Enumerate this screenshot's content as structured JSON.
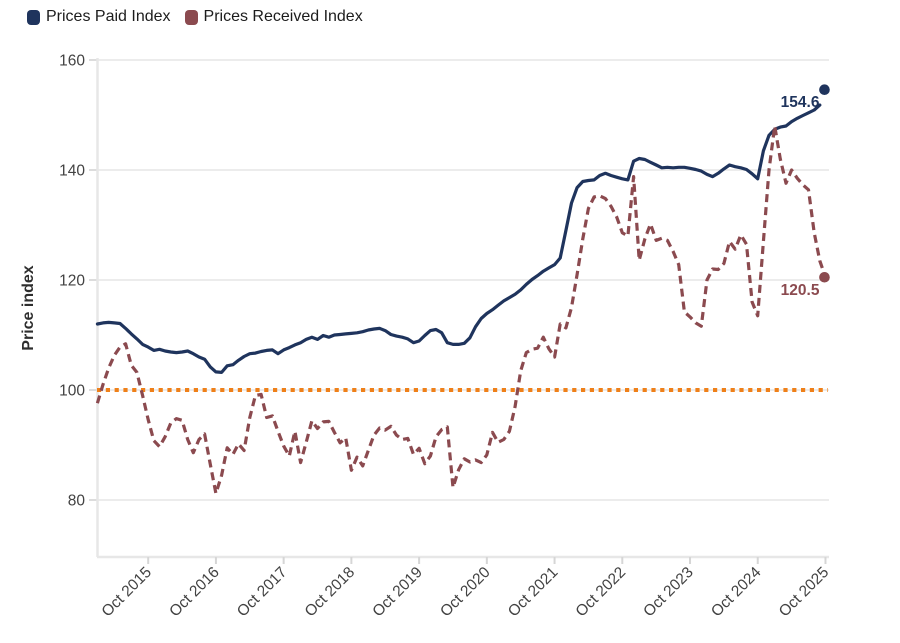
{
  "chart_data": {
    "type": "line",
    "title": "",
    "ylabel": "Price index",
    "yticks": [
      80,
      100,
      120,
      140,
      160
    ],
    "ylim": [
      70,
      162
    ],
    "grid": "horizontal-light",
    "legend_position": "top-left",
    "x_frequency": "monthly",
    "x_start": "Jan 2015",
    "x_end": "Oct 2025",
    "x_ticks": [
      "Oct 2015",
      "Oct 2016",
      "Oct 2017",
      "Oct 2018",
      "Oct 2019",
      "Oct 2020",
      "Oct 2021",
      "Oct 2022",
      "Oct 2023",
      "Oct 2024",
      "Oct 2025"
    ],
    "x_tick_month_indices": [
      9,
      21,
      33,
      45,
      57,
      69,
      81,
      93,
      105,
      117,
      129
    ],
    "baseline": {
      "value": 100,
      "color": "#ef8019",
      "style": "dotted"
    },
    "series": [
      {
        "name": "Prices Paid Index",
        "color": "#1f345d",
        "line_style": "solid",
        "end_value": 154.6,
        "end_label": "154.6",
        "line_gap_before_dot": true,
        "values": [
          112.0,
          112.2,
          112.3,
          112.2,
          112.1,
          111.2,
          110.2,
          109.3,
          108.3,
          107.8,
          107.2,
          107.4,
          107.1,
          106.9,
          106.8,
          106.9,
          107.1,
          106.6,
          106.0,
          105.6,
          104.2,
          103.3,
          103.2,
          104.4,
          104.6,
          105.4,
          106.1,
          106.6,
          106.7,
          107.0,
          107.2,
          107.3,
          106.6,
          107.3,
          107.7,
          108.2,
          108.6,
          109.2,
          109.6,
          109.2,
          109.9,
          109.6,
          110.0,
          110.1,
          110.2,
          110.3,
          110.4,
          110.6,
          110.9,
          111.1,
          111.2,
          110.8,
          110.1,
          109.8,
          109.6,
          109.3,
          108.6,
          108.9,
          109.9,
          110.8,
          111.0,
          110.4,
          108.6,
          108.3,
          108.3,
          108.5,
          109.5,
          111.5,
          113.0,
          113.9,
          114.6,
          115.4,
          116.2,
          116.8,
          117.4,
          118.2,
          119.2,
          120.1,
          120.8,
          121.6,
          122.2,
          122.8,
          124.0,
          129.0,
          134.0,
          136.8,
          137.9,
          138.1,
          138.2,
          139.0,
          139.4,
          139.0,
          138.7,
          138.4,
          138.2,
          141.6,
          142.1,
          141.9,
          141.4,
          140.9,
          140.4,
          140.5,
          140.4,
          140.5,
          140.5,
          140.3,
          140.1,
          139.8,
          139.2,
          138.8,
          139.4,
          140.2,
          140.9,
          140.6,
          140.4,
          140.1,
          139.3,
          138.4,
          143.5,
          146.3,
          147.4,
          147.8,
          148.0,
          148.8,
          149.4,
          149.9,
          150.4,
          150.9,
          151.8,
          154.6
        ]
      },
      {
        "name": "Prices Received Index",
        "color": "#8b4a4f",
        "line_style": "dashed",
        "end_value": 120.5,
        "end_label": "120.5",
        "line_gap_before_dot": false,
        "values": [
          97.6,
          101.0,
          104.0,
          106.3,
          107.8,
          108.4,
          104.5,
          103.2,
          99.0,
          94.6,
          90.8,
          89.7,
          91.5,
          94.0,
          94.8,
          94.5,
          91.0,
          88.6,
          91.0,
          92.0,
          86.5,
          81.2,
          84.5,
          89.5,
          88.3,
          90.2,
          89.0,
          95.0,
          99.0,
          99.2,
          95.0,
          95.3,
          92.5,
          89.8,
          88.0,
          92.5,
          86.8,
          90.5,
          94.4,
          93.0,
          94.2,
          94.3,
          92.3,
          90.4,
          91.3,
          85.4,
          87.8,
          86.2,
          89.0,
          91.8,
          93.1,
          92.7,
          93.4,
          91.8,
          91.0,
          91.2,
          88.3,
          89.4,
          86.6,
          88.0,
          91.5,
          92.8,
          93.3,
          82.3,
          85.5,
          87.5,
          86.9,
          87.3,
          86.8,
          88.2,
          92.3,
          90.5,
          91.0,
          92.5,
          97.0,
          103.5,
          106.8,
          107.4,
          107.6,
          109.6,
          107.5,
          106.0,
          112.0,
          111.3,
          115.0,
          121.0,
          127.5,
          133.0,
          135.1,
          135.3,
          134.8,
          133.4,
          131.5,
          128.6,
          128.0,
          138.8,
          123.6,
          127.5,
          130.2,
          127.2,
          127.6,
          127.2,
          125.2,
          122.8,
          114.2,
          113.3,
          112.2,
          111.6,
          120.0,
          122.0,
          121.9,
          123.0,
          127.0,
          125.6,
          128.2,
          126.5,
          116.0,
          113.5,
          127.0,
          140.0,
          148.0,
          142.0,
          137.6,
          140.0,
          138.5,
          137.3,
          136.4,
          128.6,
          123.5,
          120.5
        ]
      }
    ]
  }
}
